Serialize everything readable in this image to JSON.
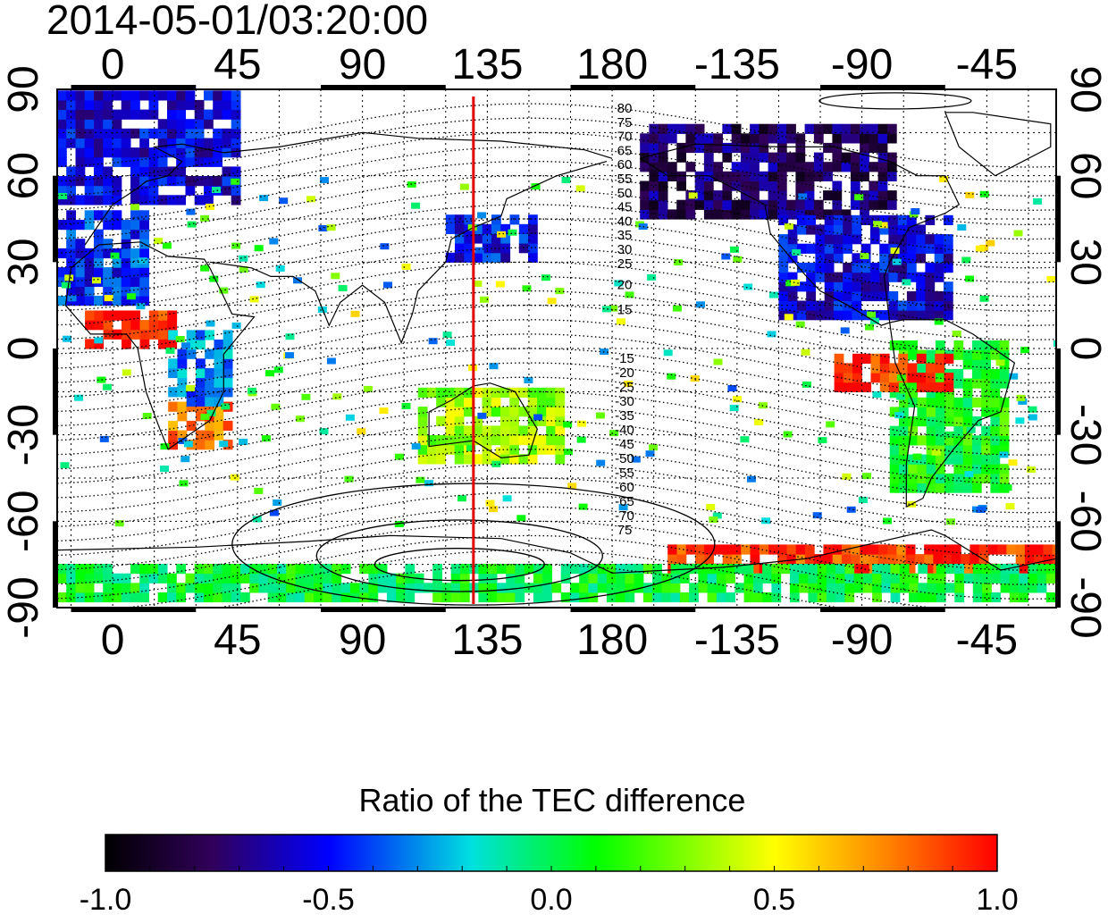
{
  "title": "2014-05-01/03:20:00",
  "map": {
    "x_ticks_bottom": [
      "0",
      "45",
      "90",
      "135",
      "180",
      "-135",
      "-90",
      "-45"
    ],
    "x_ticks_top": [
      "0",
      "45",
      "90",
      "135",
      "180",
      "-135",
      "-90",
      "-45"
    ],
    "y_ticks_left": [
      "90",
      "60",
      "30",
      "0",
      "-30",
      "-60",
      "-90"
    ],
    "y_ticks_right": [
      "90",
      "60",
      "30",
      "0",
      "-30",
      "-60",
      "-90"
    ],
    "meridian_marker_longitude": 130,
    "meridian_marker_color": "#e00000",
    "magnetic_latitude_labels_north": [
      "80",
      "75",
      "70",
      "65",
      "60",
      "55",
      "50",
      "45",
      "40",
      "35",
      "30",
      "25",
      "20",
      "15"
    ],
    "magnetic_latitude_labels_south": [
      "-15",
      "-20",
      "-25",
      "-30",
      "-35",
      "-40",
      "-45",
      "-50",
      "-55",
      "-60",
      "-65",
      "-70",
      "75"
    ]
  },
  "colorbar": {
    "title": "Ratio of the TEC difference",
    "ticks": [
      "-1.0",
      "-0.5",
      "0.0",
      "0.5",
      "1.0"
    ],
    "colors": [
      "#000000",
      "#3a0080",
      "#0000ff",
      "#00e0e0",
      "#00ff00",
      "#ffff00",
      "#ff8000",
      "#ff0000"
    ]
  },
  "chart_data": {
    "type": "heatmap",
    "title": "2014-05-01/03:20:00",
    "xlabel": "",
    "ylabel": "",
    "x_range": [
      -20,
      340
    ],
    "y_range": [
      -90,
      90
    ],
    "colorbar_range": [
      -1.0,
      1.0
    ],
    "colorbar_label": "Ratio of the TEC difference",
    "regions": [
      {
        "lon": [
          -20,
          45
        ],
        "lat": [
          50,
          88
        ],
        "value": -0.55
      },
      {
        "lon": [
          -20,
          10
        ],
        "lat": [
          15,
          45
        ],
        "value": -0.45
      },
      {
        "lon": [
          -10,
          20
        ],
        "lat": [
          0,
          10
        ],
        "value": 0.95
      },
      {
        "lon": [
          20,
          40
        ],
        "lat": [
          -35,
          -20
        ],
        "value": 0.8
      },
      {
        "lon": [
          20,
          40
        ],
        "lat": [
          -20,
          5
        ],
        "value": -0.3
      },
      {
        "lon": [
          110,
          160
        ],
        "lat": [
          -40,
          -15
        ],
        "value": 0.35
      },
      {
        "lon": [
          120,
          150
        ],
        "lat": [
          30,
          45
        ],
        "value": -0.5
      },
      {
        "lon": [
          190,
          280
        ],
        "lat": [
          45,
          75
        ],
        "value": -0.75
      },
      {
        "lon": [
          240,
          300
        ],
        "lat": [
          10,
          45
        ],
        "value": -0.55
      },
      {
        "lon": [
          280,
          320
        ],
        "lat": [
          -50,
          0
        ],
        "value": 0.1
      },
      {
        "lon": [
          260,
          300
        ],
        "lat": [
          -15,
          -5
        ],
        "value": 0.9
      },
      {
        "lon": [
          200,
          340
        ],
        "lat": [
          -78,
          -70
        ],
        "value": 0.9
      },
      {
        "lon": [
          -20,
          340
        ],
        "lat": [
          -88,
          -78
        ],
        "value": 0.05
      }
    ]
  }
}
